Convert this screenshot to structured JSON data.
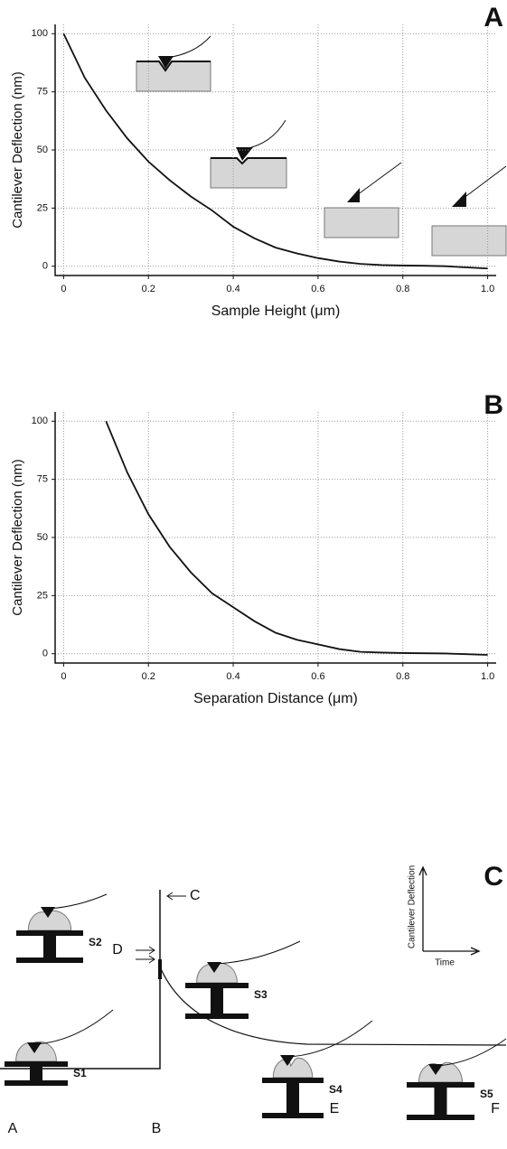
{
  "chart_data": [
    {
      "type": "line",
      "panel_label": "A",
      "x_label": "Sample Height (μm)",
      "y_label": "Cantilever Deflection (nm)",
      "x": [
        0,
        0.05,
        0.1,
        0.15,
        0.2,
        0.25,
        0.3,
        0.35,
        0.4,
        0.45,
        0.5,
        0.55,
        0.6,
        0.65,
        0.7,
        0.75,
        0.8,
        0.85,
        0.9,
        0.95,
        1.0
      ],
      "values": [
        100,
        81,
        67,
        55,
        45,
        37,
        30,
        24,
        17,
        12,
        8,
        5.5,
        3.5,
        2,
        1,
        0.5,
        0.3,
        0.2,
        0,
        -0.5,
        -1
      ],
      "color": "#111111",
      "xlim": [
        -0.02,
        1.02
      ],
      "ylim": [
        -4,
        104
      ],
      "xticks": [
        0,
        0.2,
        0.4,
        0.6,
        0.8,
        {
          "value": 1,
          "label": "1.0"
        }
      ],
      "yticks": [
        0,
        25,
        50,
        75,
        100
      ],
      "grid": true
    },
    {
      "type": "line",
      "panel_label": "B",
      "x_label": "Separation Distance (μm)",
      "y_label": "Cantilever Deflection (nm)",
      "x": [
        0.1,
        0.15,
        0.2,
        0.25,
        0.3,
        0.35,
        0.4,
        0.45,
        0.5,
        0.55,
        0.6,
        0.65,
        0.7,
        0.75,
        0.8,
        0.9,
        1.0
      ],
      "values": [
        100,
        78,
        60,
        46,
        35,
        26,
        20,
        14,
        9,
        6,
        4,
        2,
        0.8,
        0.5,
        0.3,
        0.1,
        -0.5
      ],
      "color": "#111111",
      "xlim": [
        -0.02,
        1.02
      ],
      "ylim": [
        -4,
        104
      ],
      "xticks": [
        0,
        0.2,
        0.4,
        0.6,
        0.8,
        {
          "value": 1,
          "label": "1.0"
        }
      ],
      "yticks": [
        0,
        25,
        50,
        75,
        100
      ],
      "grid": true
    }
  ],
  "diagram": {
    "panel_label": "C",
    "labels": {
      "c": "C",
      "d": "D",
      "a": "A",
      "b": "B",
      "e": "E",
      "f": "F",
      "s1": "S1",
      "s2": "S2",
      "s3": "S3",
      "s4": "S4",
      "s5": "S5"
    },
    "inset_y_label": "Cantilever Deflection",
    "inset_x_label": "Time"
  }
}
